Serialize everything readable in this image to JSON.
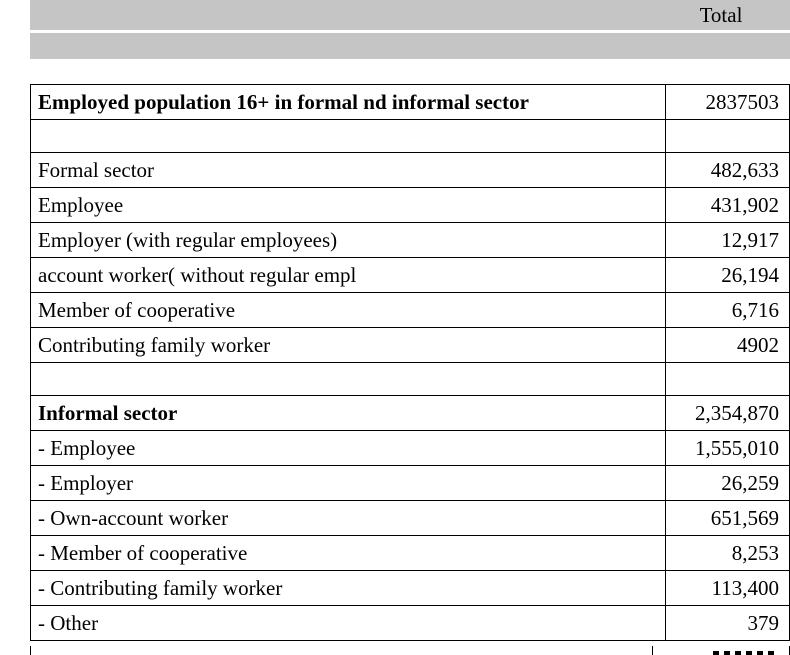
{
  "colors": {
    "header_bg": "#c5c5c5",
    "border": "#000000",
    "text": "#000000"
  },
  "header": {
    "total_label": "Total"
  },
  "table": {
    "rows": [
      {
        "label": "Employed population 16+ in formal nd informal sector",
        "value": "2837503",
        "bold": true
      },
      {
        "label": "",
        "value": ""
      },
      {
        "label": "Formal sector",
        "value": "482,633"
      },
      {
        "label": "Employee",
        "value": "431,902"
      },
      {
        "label": "Employer (with regular employees)",
        "value": "12,917"
      },
      {
        "label": "account worker( without regular empl",
        "value": "26,194"
      },
      {
        "label": "Member of cooperative",
        "value": "6,716"
      },
      {
        "label": "Contributing family worker",
        "value": "4902"
      },
      {
        "label": "",
        "value": ""
      },
      {
        "label": "Informal sector",
        "value": "2,354,870",
        "bold": true
      },
      {
        "label": "- Employee",
        "value": "1,555,010"
      },
      {
        "label": "- Employer",
        "value": "26,259"
      },
      {
        "label": "- Own-account worker",
        "value": "651,569"
      },
      {
        "label": "- Member of cooperative",
        "value": "8,253"
      },
      {
        "label": "- Contributing family worker",
        "value": "113,400"
      },
      {
        "label": "- Other",
        "value": "379"
      }
    ],
    "cutoff_row_visible": true
  }
}
